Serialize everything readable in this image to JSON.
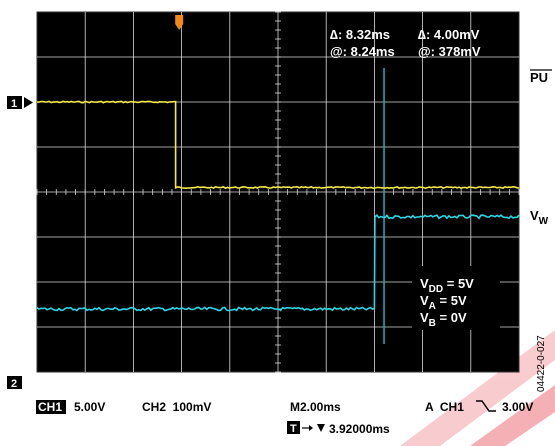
{
  "chart_data": {
    "type": "line",
    "title": "",
    "xlabel": "",
    "ylabel": "",
    "xlim": [
      0,
      20
    ],
    "ylim": [
      -4,
      4
    ],
    "x_unit": "ms",
    "y_unit": "div",
    "grid": true,
    "grid_divisions": {
      "x": 10,
      "y": 8
    },
    "background": "#000000",
    "series": [
      {
        "name": "",
        "color": "#f2e84a",
        "x": [
          0,
          5.75,
          5.75,
          20
        ],
        "y": [
          2.0,
          2.0,
          0.1,
          0.1
        ]
      },
      {
        "name": "",
        "color": "#2cd6e3",
        "x": [
          0,
          14.0,
          14.02,
          20
        ],
        "y": [
          -2.6,
          -2.6,
          -0.55,
          -0.55
        ]
      }
    ],
    "cursor": {
      "x": 14.4,
      "color": "#1eb0c0"
    },
    "trigger_marker_x": 5.9,
    "readouts": {
      "delta_time": "8.32ms",
      "delta_volt": "4.00mV",
      "at_time": "8.24ms",
      "at_volt": "378mV"
    },
    "conditions": [
      {
        "main": "V",
        "sub": "DD",
        "value": " = 5V"
      },
      {
        "main": "V",
        "sub": "A",
        "value": " = 5V"
      },
      {
        "main": "V",
        "sub": "B",
        "value": " = 0V"
      }
    ]
  },
  "channel_markers": {
    "ch1": "1",
    "ch2": "2"
  },
  "side_labels": {
    "pu": "PU",
    "vw_main": "V",
    "vw_sub": "W"
  },
  "scope_status": {
    "ch1_tag": "CH1",
    "ch1_scale": "5.00V",
    "ch2": "CH2  100mV",
    "timebase": "M2.00ms",
    "trigger": "A  CH1",
    "trigger_level": "3.00V",
    "trigger_tag": "T",
    "trigger_pos": "3.92000ms"
  },
  "figure_id": "04422-0-027",
  "colors": {
    "accent_watermark": "#e8202a"
  }
}
